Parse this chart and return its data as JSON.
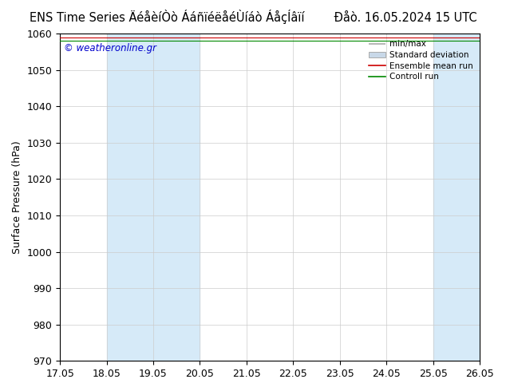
{
  "title": "ENS Time Series ÄéåèíÒò ÁáñïéëåéÙíáò ÁåçÍâïí",
  "date_label": "Đåò. 16.05.2024 15 UTC",
  "ylabel": "Surface Pressure (hPa)",
  "ylim": [
    970,
    1060
  ],
  "yticks": [
    970,
    980,
    990,
    1000,
    1010,
    1020,
    1030,
    1040,
    1050,
    1060
  ],
  "xtick_positions": [
    17,
    18,
    19,
    20,
    21,
    22,
    23,
    24,
    25,
    26
  ],
  "xtick_labels": [
    "17.05",
    "18.05",
    "19.05",
    "20.05",
    "21.05",
    "22.05",
    "23.05",
    "24.05",
    "25.05",
    "26.05"
  ],
  "watermark": "© weatheronline.gr",
  "watermark_color": "#0000cc",
  "shaded_regions": [
    {
      "xstart": 18.0,
      "xend": 20.0,
      "color": "#d6eaf8"
    },
    {
      "xstart": 25.0,
      "xend": 26.5,
      "color": "#d6eaf8"
    }
  ],
  "legend_items": [
    {
      "label": "min/max",
      "color": "#aaaaaa",
      "style": "minmax"
    },
    {
      "label": "Standard deviation",
      "color": "#c8d8e8",
      "style": "stddev"
    },
    {
      "label": "Ensemble mean run",
      "color": "#cc0000",
      "style": "line"
    },
    {
      "label": "Controll run",
      "color": "#008800",
      "style": "line"
    }
  ],
  "ensemble_mean_y": 1059.0,
  "control_run_y": 1058.0,
  "background_color": "#ffffff",
  "plot_bg_color": "#ffffff",
  "border_color": "#000000",
  "grid_color": "#cccccc",
  "title_fontsize": 10.5,
  "tick_fontsize": 9,
  "label_fontsize": 9,
  "legend_fontsize": 7.5
}
